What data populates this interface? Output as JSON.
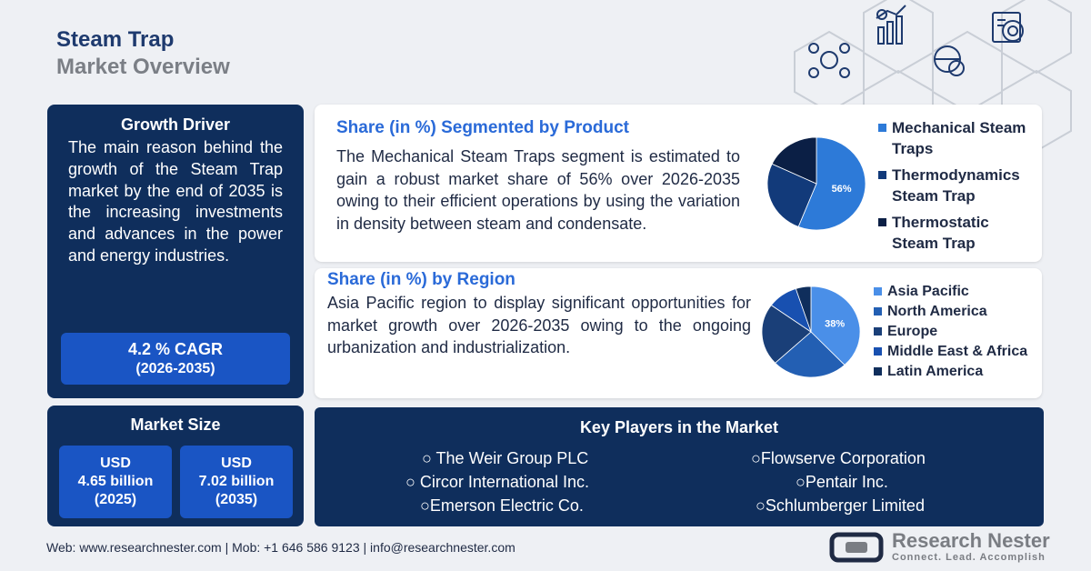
{
  "header": {
    "title_line1": "Steam Trap",
    "title_line2": "Market Overview"
  },
  "growth_driver": {
    "heading": "Growth Driver",
    "text": "The main reason behind the growth of the Steam Trap market by the end of 2035 is the increasing investments and advances in the power and energy industries.",
    "cagr_value": "4.2 % CAGR",
    "cagr_period": "(2026-2035)"
  },
  "market_size": {
    "heading": "Market Size",
    "boxes": [
      {
        "line1": "USD",
        "line2": "4.65 billion",
        "line3": "(2025)"
      },
      {
        "line1": "USD",
        "line2": "7.02 billion",
        "line3": "(2035)"
      }
    ]
  },
  "product_section": {
    "heading": "Share (in %) Segmented by Product",
    "text": "The Mechanical Steam Traps segment is estimated to gain a robust market share of 56% over 2026-2035 owing to their efficient operations by using the variation in density between steam and condensate."
  },
  "region_section": {
    "heading": "Share (in %) by Region",
    "text": "Asia Pacific region to display significant opportunities for market growth over 2026-2035 owing to the ongoing urbanization and industrialization."
  },
  "key_players": {
    "heading": "Key Players in the Market",
    "left": [
      "○ The Weir Group PLC",
      "○ Circor International Inc.",
      "○Emerson Electric Co."
    ],
    "right": [
      "○Flowserve Corporation",
      "○Pentair Inc.",
      "○Schlumberger Limited"
    ]
  },
  "footer": {
    "contact": "Web: www.researchnester.com | Mob: +1 646 586 9123 | info@researchnester.com"
  },
  "logo": {
    "name": "Research Nester",
    "tagline": "Connect. Lead. Accomplish"
  },
  "icons": [
    "network-people-icon",
    "growth-chart-icon",
    "globe-dollar-icon",
    "target-report-icon"
  ],
  "chart_data": [
    {
      "type": "pie",
      "title": "",
      "categories": [
        "Mechanical Steam Traps",
        "Thermodynamics Steam Trap",
        "Thermostatic Steam Trap"
      ],
      "values": [
        56,
        26,
        18
      ],
      "labels": [
        "56%",
        "",
        ""
      ],
      "legend_labels": [
        "Mechanical Steam Traps",
        "Thermodynamics Steam Trap",
        "Thermostatic Steam Trap"
      ],
      "colors": [
        "#2d7ad8",
        "#123a7a",
        "#0b1f45"
      ],
      "legend_position": "right"
    },
    {
      "type": "pie",
      "title": "",
      "categories": [
        "Asia Pacific",
        "North America",
        "Europe",
        "Middle East & Africa",
        "Latin America"
      ],
      "values": [
        38,
        25,
        22,
        10,
        5
      ],
      "labels": [
        "38%",
        "",
        "",
        "",
        ""
      ],
      "colors": [
        "#4a8fe8",
        "#235fb3",
        "#1a3f78",
        "#1850b0",
        "#0f2e5c"
      ],
      "legend_position": "right"
    }
  ]
}
